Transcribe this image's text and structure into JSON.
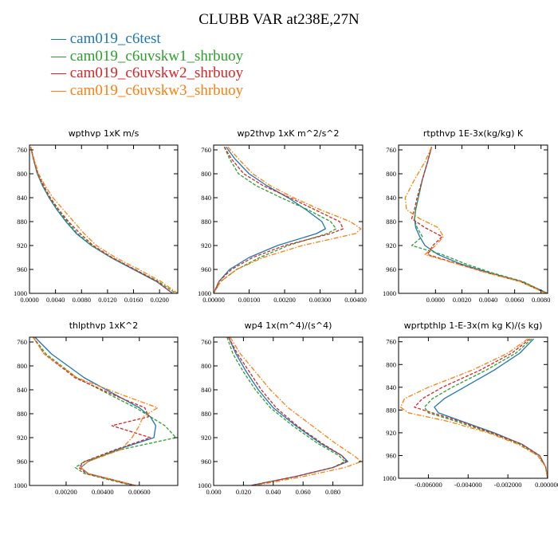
{
  "title": "CLUBB VAR at238E,27N",
  "legend": [
    {
      "name": "cam019_c6test",
      "color": "#1f77b4"
    },
    {
      "name": "cam019_c6uvskw1_shrbuoy",
      "color": "#2ca02c"
    },
    {
      "name": "cam019_c6uvskw2_shrbuoy",
      "color": "#d62728"
    },
    {
      "name": "cam019_c6uvskw3_shrbuoy",
      "color": "#ff7f0e"
    }
  ],
  "chart_data": [
    {
      "type": "line",
      "title": "wpthvp   1xK m/s",
      "xlim": [
        0,
        0.0228
      ],
      "ylim": [
        1000,
        752
      ],
      "y_inverted": true,
      "xticks": [
        "0.0000",
        "0.0040",
        "0.0080",
        "0.0120",
        "0.0160",
        "0.0200"
      ],
      "xtick_values": [
        0,
        0.004,
        0.008,
        0.012,
        0.016,
        0.02
      ],
      "yticks": [
        "760",
        "800",
        "840",
        "880",
        "920",
        "960",
        "1000"
      ],
      "ytick_values": [
        760,
        800,
        840,
        880,
        920,
        960,
        1000
      ],
      "y": [
        755,
        775,
        800,
        820,
        840,
        860,
        880,
        900,
        920,
        940,
        960,
        980,
        1000
      ],
      "series": [
        {
          "name": "cam019_c6test",
          "x": [
            0.0002,
            0.0006,
            0.0012,
            0.002,
            0.003,
            0.0042,
            0.0056,
            0.0072,
            0.0095,
            0.0125,
            0.016,
            0.0195,
            0.022
          ],
          "style": "solid"
        },
        {
          "name": "cam019_c6uvskw1_shrbuoy",
          "x": [
            0.0002,
            0.0006,
            0.0012,
            0.0021,
            0.0031,
            0.0043,
            0.0058,
            0.0074,
            0.0096,
            0.0126,
            0.0162,
            0.0198,
            0.0225
          ],
          "style": "dashed"
        },
        {
          "name": "cam019_c6uvskw2_shrbuoy",
          "x": [
            0.0002,
            0.0006,
            0.0013,
            0.0022,
            0.0032,
            0.0045,
            0.006,
            0.0078,
            0.0098,
            0.0127,
            0.0162,
            0.0196,
            0.022
          ],
          "style": "dashed"
        },
        {
          "name": "cam019_c6uvskw3_shrbuoy",
          "x": [
            0.0002,
            0.0007,
            0.0014,
            0.0024,
            0.0036,
            0.0052,
            0.0068,
            0.0084,
            0.0103,
            0.0132,
            0.0168,
            0.0202,
            0.0228
          ],
          "style": "dashdot"
        }
      ]
    },
    {
      "type": "line",
      "title": "wp2thvp   1xK m^2/s^2",
      "xlim": [
        0,
        0.0042
      ],
      "ylim": [
        1000,
        752
      ],
      "y_inverted": true,
      "xticks": [
        "0.00000",
        "0.00100",
        "0.00200",
        "0.00300",
        "0.00400"
      ],
      "xtick_values": [
        0,
        0.001,
        0.002,
        0.003,
        0.004
      ],
      "yticks": [
        "760",
        "800",
        "840",
        "880",
        "920",
        "960",
        "1000"
      ],
      "ytick_values": [
        760,
        800,
        840,
        880,
        920,
        960,
        1000
      ],
      "y": [
        755,
        775,
        800,
        820,
        840,
        860,
        880,
        892,
        900,
        920,
        940,
        960,
        980,
        1000
      ],
      "series": [
        {
          "name": "cam019_c6test",
          "x": [
            0.00035,
            0.0006,
            0.001,
            0.0015,
            0.0021,
            0.0026,
            0.00305,
            0.00315,
            0.0029,
            0.0018,
            0.001,
            0.00045,
            0.00015,
            0.0
          ],
          "style": "solid"
        },
        {
          "name": "cam019_c6uvskw1_shrbuoy",
          "x": [
            0.0003,
            0.00045,
            0.0007,
            0.0012,
            0.0019,
            0.00265,
            0.0033,
            0.00345,
            0.0032,
            0.0021,
            0.0013,
            0.00065,
            0.0002,
            0.0
          ],
          "style": "dashed"
        },
        {
          "name": "cam019_c6uvskw2_shrbuoy",
          "x": [
            0.0003,
            0.0005,
            0.00085,
            0.0014,
            0.00215,
            0.00285,
            0.00355,
            0.00365,
            0.0033,
            0.002,
            0.0011,
            0.0005,
            0.00015,
            0.0
          ],
          "style": "dashed"
        },
        {
          "name": "cam019_c6uvskw3_shrbuoy",
          "x": [
            0.0004,
            0.0007,
            0.0011,
            0.0016,
            0.00225,
            0.003,
            0.00385,
            0.00415,
            0.004,
            0.0025,
            0.0014,
            0.00065,
            0.0002,
            0.0
          ],
          "style": "dashdot"
        }
      ]
    },
    {
      "type": "line",
      "title": "rtpthvp   1E-3x(kg/kg) K",
      "xlim": [
        -0.0028,
        0.0085
      ],
      "ylim": [
        1000,
        752
      ],
      "y_inverted": true,
      "xticks": [
        "0.0000",
        "0.0020",
        "0.0040",
        "0.0060",
        "0.0080"
      ],
      "xtick_values": [
        0,
        0.002,
        0.004,
        0.006,
        0.008
      ],
      "yticks": [
        "760",
        "800",
        "840",
        "880",
        "920",
        "960",
        "1000"
      ],
      "ytick_values": [
        760,
        800,
        840,
        880,
        920,
        960,
        1000
      ],
      "y": [
        755,
        780,
        810,
        840,
        860,
        875,
        890,
        905,
        920,
        935,
        950,
        965,
        980,
        1000
      ],
      "series": [
        {
          "name": "cam019_c6test",
          "x": [
            -0.0003,
            -0.0006,
            -0.001,
            -0.0013,
            -0.0015,
            -0.0016,
            -0.0015,
            -0.0012,
            -0.0008,
            0.0002,
            0.0018,
            0.004,
            0.0065,
            0.0085
          ],
          "style": "solid"
        },
        {
          "name": "cam019_c6uvskw1_shrbuoy",
          "x": [
            -0.0003,
            -0.0006,
            -0.001,
            -0.0013,
            -0.0015,
            -0.0016,
            -0.0014,
            -0.001,
            -0.0018,
            0.0005,
            0.0022,
            0.0042,
            0.0066,
            0.0085
          ],
          "style": "dashed"
        },
        {
          "name": "cam019_c6uvskw2_shrbuoy",
          "x": [
            -0.0003,
            -0.0006,
            -0.001,
            -0.0014,
            -0.0016,
            -0.0018,
            -0.0008,
            0.0005,
            -0.0002,
            -0.0006,
            0.0016,
            0.0038,
            0.0064,
            0.0084
          ],
          "style": "dashed"
        },
        {
          "name": "cam019_c6uvskw3_shrbuoy",
          "x": [
            -0.0003,
            -0.0008,
            -0.0016,
            -0.0023,
            -0.0022,
            -0.0012,
            0.0002,
            0.0006,
            0.0,
            -0.0008,
            0.0015,
            0.0038,
            0.0064,
            0.0084
          ],
          "style": "dashdot"
        }
      ]
    },
    {
      "type": "line",
      "title": "thlpthvp   1xK^2",
      "xlim": [
        0,
        0.0081
      ],
      "ylim": [
        1000,
        752
      ],
      "y_inverted": true,
      "xticks": [
        "0.00200",
        "0.00400",
        "0.00600"
      ],
      "xtick_values": [
        0.002,
        0.004,
        0.006
      ],
      "yticks": [
        "760",
        "800",
        "840",
        "880",
        "920",
        "960",
        "1000"
      ],
      "ytick_values": [
        760,
        800,
        840,
        880,
        920,
        960,
        1000
      ],
      "y": [
        752,
        780,
        820,
        850,
        870,
        885,
        900,
        920,
        940,
        960,
        970,
        980,
        1000
      ],
      "series": [
        {
          "name": "cam019_c6test",
          "x": [
            0.0003,
            0.0012,
            0.003,
            0.0048,
            0.006,
            0.0066,
            0.0069,
            0.0068,
            0.0048,
            0.0032,
            0.0028,
            0.0032,
            0.0058
          ],
          "style": "solid"
        },
        {
          "name": "cam019_c6uvskw1_shrbuoy",
          "x": [
            0.0002,
            0.0009,
            0.0026,
            0.0045,
            0.0058,
            0.0066,
            0.0074,
            0.008,
            0.005,
            0.003,
            0.0025,
            0.003,
            0.0056
          ],
          "style": "dashed"
        },
        {
          "name": "cam019_c6uvskw2_shrbuoy",
          "x": [
            0.0002,
            0.0008,
            0.0025,
            0.0047,
            0.0063,
            0.0065,
            0.0045,
            0.0066,
            0.0047,
            0.003,
            0.0027,
            0.0031,
            0.0057
          ],
          "style": "dashed"
        },
        {
          "name": "cam019_c6uvskw3_shrbuoy",
          "x": [
            0.0002,
            0.0008,
            0.0026,
            0.0052,
            0.007,
            0.0062,
            0.006,
            0.0056,
            0.005,
            0.0032,
            0.0028,
            0.0032,
            0.0058
          ],
          "style": "dashdot"
        }
      ]
    },
    {
      "type": "line",
      "title": "wp4   1x(m^4)/(s^4)",
      "xlim": [
        0,
        0.1
      ],
      "ylim": [
        1000,
        752
      ],
      "y_inverted": true,
      "xticks": [
        "0.000",
        "0.020",
        "0.040",
        "0.060",
        "0.080"
      ],
      "xtick_values": [
        0,
        0.02,
        0.04,
        0.06,
        0.08
      ],
      "yticks": [
        "760",
        "800",
        "840",
        "880",
        "920",
        "960",
        "1000"
      ],
      "ytick_values": [
        760,
        800,
        840,
        880,
        920,
        960,
        1000
      ],
      "y": [
        752,
        780,
        810,
        840,
        870,
        900,
        930,
        950,
        960,
        970,
        985,
        1000
      ],
      "series": [
        {
          "name": "cam019_c6test",
          "x": [
            0.01,
            0.015,
            0.022,
            0.03,
            0.04,
            0.055,
            0.072,
            0.086,
            0.09,
            0.08,
            0.055,
            0.025
          ],
          "style": "solid"
        },
        {
          "name": "cam019_c6uvskw1_shrbuoy",
          "x": [
            0.009,
            0.013,
            0.02,
            0.028,
            0.038,
            0.053,
            0.07,
            0.084,
            0.088,
            0.08,
            0.055,
            0.025
          ],
          "style": "dashed"
        },
        {
          "name": "cam019_c6uvskw2_shrbuoy",
          "x": [
            0.01,
            0.016,
            0.024,
            0.032,
            0.042,
            0.056,
            0.073,
            0.086,
            0.089,
            0.08,
            0.055,
            0.025
          ],
          "style": "dashed"
        },
        {
          "name": "cam019_c6uvskw3_shrbuoy",
          "x": [
            0.011,
            0.018,
            0.028,
            0.038,
            0.05,
            0.066,
            0.082,
            0.094,
            0.099,
            0.088,
            0.06,
            0.028
          ],
          "style": "dashdot"
        }
      ]
    },
    {
      "type": "line",
      "title": "wprtpthlp   1-E-3x(m kg K)/(s kg)",
      "xlim": [
        -0.0075,
        0.0
      ],
      "ylim": [
        1000,
        752
      ],
      "y_inverted": true,
      "xticks": [
        "-0.006000",
        "-0.004000",
        "-0.002000",
        "0.000000"
      ],
      "xtick_values": [
        -0.006,
        -0.004,
        -0.002,
        0.0
      ],
      "yticks": [
        "760",
        "800",
        "840",
        "880",
        "920",
        "960",
        "1000"
      ],
      "ytick_values": [
        760,
        800,
        840,
        880,
        920,
        960,
        1000
      ],
      "y": [
        755,
        780,
        810,
        840,
        860,
        875,
        885,
        900,
        920,
        940,
        960,
        980,
        1000
      ],
      "series": [
        {
          "name": "cam019_c6test",
          "x": [
            -0.0007,
            -0.0014,
            -0.0027,
            -0.0042,
            -0.0052,
            -0.0057,
            -0.0055,
            -0.0043,
            -0.0027,
            -0.0013,
            -0.0004,
            -0.0001,
            0.0
          ],
          "style": "solid"
        },
        {
          "name": "cam019_c6uvskw1_shrbuoy",
          "x": [
            -0.0008,
            -0.0016,
            -0.0031,
            -0.0048,
            -0.0058,
            -0.0062,
            -0.006,
            -0.0046,
            -0.0029,
            -0.0014,
            -0.0005,
            -0.0001,
            0.0
          ],
          "style": "dashed"
        },
        {
          "name": "cam019_c6uvskw2_shrbuoy",
          "x": [
            -0.0009,
            -0.0018,
            -0.0034,
            -0.0053,
            -0.0063,
            -0.0067,
            -0.0058,
            -0.0044,
            -0.0028,
            -0.0013,
            -0.0004,
            -0.0001,
            0.0
          ],
          "style": "dashed"
        },
        {
          "name": "cam019_c6uvskw3_shrbuoy",
          "x": [
            -0.001,
            -0.002,
            -0.0038,
            -0.006,
            -0.0072,
            -0.0074,
            -0.007,
            -0.005,
            -0.003,
            -0.0015,
            -0.0005,
            -0.0001,
            0.0
          ],
          "style": "dashdot"
        }
      ]
    }
  ]
}
